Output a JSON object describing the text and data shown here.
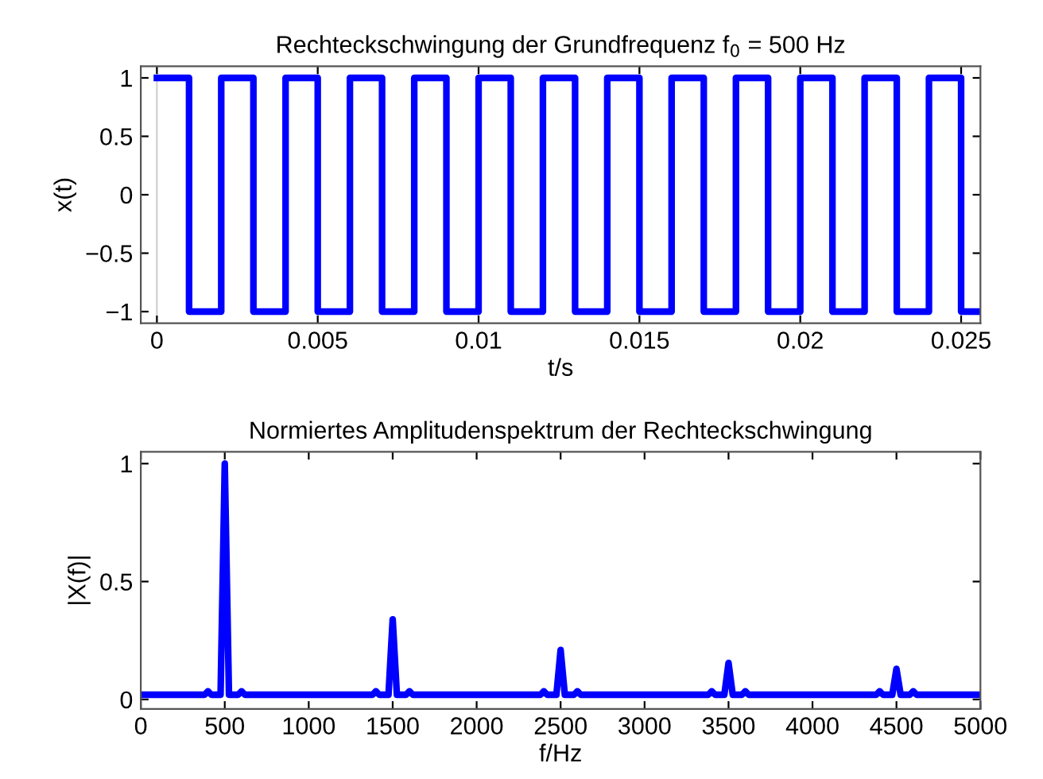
{
  "chart_data": [
    {
      "type": "step",
      "title": "Rechteckschwingung der Grundfrequenz f$_{0}$ = 500 Hz",
      "xlabel": "t/s",
      "ylabel": "x(t)",
      "grid": "x",
      "line_style": "solid",
      "marker": "none",
      "x": [
        0,
        0.001,
        0.002,
        0.003,
        0.004,
        0.005,
        0.006,
        0.007,
        0.008,
        0.009,
        0.01,
        0.011,
        0.012,
        0.013,
        0.014,
        0.015,
        0.016,
        0.017,
        0.018,
        0.019,
        0.02,
        0.021,
        0.022,
        0.023,
        0.024,
        0.025,
        0.0256
      ],
      "series": [
        {
          "color": "#0000ff",
          "values": [
            1,
            -1,
            1,
            -1,
            1,
            -1,
            1,
            -1,
            1,
            -1,
            1,
            -1,
            1,
            -1,
            1,
            -1,
            1,
            -1,
            1,
            -1,
            1,
            -1,
            1,
            -1,
            1,
            -1,
            -1
          ]
        }
      ],
      "xlim": [
        -0.0005,
        0.0256
      ],
      "ylim": [
        -1.1,
        1.1
      ],
      "xticks": [
        0,
        0.005,
        0.01,
        0.015,
        0.02,
        0.025
      ],
      "yticks": [
        {
          "value": -1,
          "label": "−1"
        },
        {
          "value": -0.5,
          "label": "−0.5"
        },
        0,
        0.5,
        1
      ]
    },
    {
      "type": "line",
      "title": "Normiertes Amplitudenspektrum der Rechteckschwingung",
      "xlabel": "f/Hz",
      "ylabel": "|X(f)|",
      "grid": false,
      "line_style": "solid",
      "marker": "none",
      "x": [
        0,
        380,
        400,
        420,
        475,
        500,
        525,
        580,
        600,
        620,
        1380,
        1400,
        1420,
        1475,
        1500,
        1525,
        1580,
        1600,
        1620,
        2380,
        2400,
        2420,
        2475,
        2500,
        2525,
        2580,
        2600,
        2620,
        3380,
        3400,
        3420,
        3475,
        3500,
        3525,
        3580,
        3600,
        3620,
        4380,
        4400,
        4420,
        4475,
        4500,
        4525,
        4580,
        4600,
        4620,
        5000
      ],
      "series": [
        {
          "color": "#0000ff",
          "values": [
            0.02,
            0.02,
            0.035,
            0.02,
            0.02,
            1,
            0.02,
            0.02,
            0.035,
            0.02,
            0.02,
            0.035,
            0.02,
            0.02,
            0.34,
            0.02,
            0.02,
            0.035,
            0.02,
            0.02,
            0.035,
            0.02,
            0.02,
            0.21,
            0.02,
            0.02,
            0.035,
            0.02,
            0.02,
            0.035,
            0.02,
            0.02,
            0.155,
            0.02,
            0.02,
            0.035,
            0.02,
            0.02,
            0.035,
            0.02,
            0.02,
            0.13,
            0.02,
            0.02,
            0.035,
            0.02,
            0.02
          ]
        }
      ],
      "xlim": [
        0,
        5000
      ],
      "ylim": [
        -0.04,
        1.05
      ],
      "xticks": [
        0,
        500,
        1000,
        1500,
        2000,
        2500,
        3000,
        3500,
        4000,
        4500,
        5000
      ],
      "yticks": [
        0,
        0.5,
        1
      ]
    }
  ]
}
